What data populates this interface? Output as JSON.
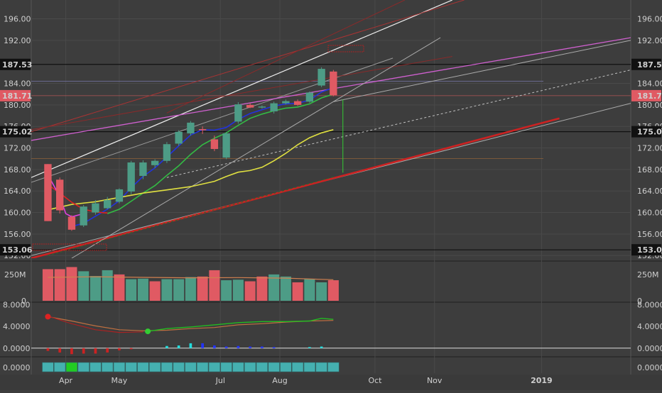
{
  "chart_data": {
    "type": "candlestick",
    "colors": {
      "background": "#3d3d3d",
      "grid": "#4a4a4a",
      "up": "#4d9c86",
      "down": "#e05a63",
      "ma_fast": "#2233dd",
      "ma_mid": "#33bb44",
      "ma_slow": "#e0e040",
      "ma_red": "#dd2222",
      "ma_magenta": "#e040e0",
      "volume_ma": "#d08050",
      "osc_line": "#22bb22",
      "osc_signal": "#c07040",
      "bar_down": "#cc2222",
      "bar_up": "#22dddd",
      "bar_blue": "#2233ff"
    },
    "price_axis": {
      "ticks": [
        "196.00",
        "192.00",
        "184.00",
        "180.00",
        "176.00",
        "172.00",
        "168.00",
        "164.00",
        "160.00",
        "156.00",
        "152.00"
      ],
      "ylim": [
        151.5,
        199.5
      ],
      "highlight_labels": [
        {
          "label": "187.53",
          "value": 187.53,
          "style": "dark"
        },
        {
          "label": "181.71",
          "value": 181.71,
          "style": "red"
        },
        {
          "label": "175.02",
          "value": 175.02,
          "style": "dark"
        },
        {
          "label": "153.06",
          "value": 153.06,
          "style": "dark"
        }
      ]
    },
    "horizontal_lines": [
      187.53,
      175.02,
      153.06
    ],
    "x_axis": {
      "ticks": [
        {
          "label": "Apr",
          "week": 1.5
        },
        {
          "label": "May",
          "week": 6
        },
        {
          "label": "Jul",
          "week": 14.5
        },
        {
          "label": "Aug",
          "week": 19.5
        },
        {
          "label": "Oct",
          "week": 27.5
        },
        {
          "label": "Nov",
          "week": 32.5
        },
        {
          "label": "2019",
          "week": 41.5
        }
      ],
      "week_range": [
        -1.4,
        49
      ]
    },
    "candles": [
      {
        "w": 0,
        "o": 169.0,
        "h": 169.0,
        "l": 158.4,
        "c": 158.4
      },
      {
        "w": 1,
        "o": 166.1,
        "h": 166.5,
        "l": 159.8,
        "c": 160.4
      },
      {
        "w": 2,
        "o": 159.2,
        "h": 159.5,
        "l": 156.6,
        "c": 156.8
      },
      {
        "w": 3,
        "o": 157.6,
        "h": 161.4,
        "l": 157.3,
        "c": 161.1
      },
      {
        "w": 4,
        "o": 160.0,
        "h": 162.3,
        "l": 159.6,
        "c": 161.7
      },
      {
        "w": 5,
        "o": 160.8,
        "h": 162.9,
        "l": 160.6,
        "c": 162.3
      },
      {
        "w": 6,
        "o": 162.0,
        "h": 164.5,
        "l": 161.7,
        "c": 164.3
      },
      {
        "w": 7,
        "o": 163.9,
        "h": 169.6,
        "l": 163.4,
        "c": 169.3
      },
      {
        "w": 8,
        "o": 166.8,
        "h": 169.7,
        "l": 166.2,
        "c": 169.3
      },
      {
        "w": 9,
        "o": 168.8,
        "h": 169.9,
        "l": 168.3,
        "c": 169.6
      },
      {
        "w": 10,
        "o": 169.6,
        "h": 173.1,
        "l": 169.2,
        "c": 172.7
      },
      {
        "w": 11,
        "o": 172.8,
        "h": 175.3,
        "l": 172.4,
        "c": 175.0
      },
      {
        "w": 12,
        "o": 174.7,
        "h": 177.0,
        "l": 174.3,
        "c": 176.7
      },
      {
        "w": 13,
        "o": 175.5,
        "h": 176.0,
        "l": 174.6,
        "c": 175.3
      },
      {
        "w": 14,
        "o": 173.6,
        "h": 174.3,
        "l": 171.4,
        "c": 171.8
      },
      {
        "w": 15,
        "o": 170.2,
        "h": 175.0,
        "l": 169.9,
        "c": 174.7
      },
      {
        "w": 16,
        "o": 176.9,
        "h": 180.5,
        "l": 176.5,
        "c": 180.1
      },
      {
        "w": 17,
        "o": 180.0,
        "h": 180.3,
        "l": 179.4,
        "c": 179.5
      },
      {
        "w": 18,
        "o": 179.6,
        "h": 179.9,
        "l": 179.3,
        "c": 179.7
      },
      {
        "w": 19,
        "o": 178.8,
        "h": 180.6,
        "l": 178.4,
        "c": 180.3
      },
      {
        "w": 20,
        "o": 180.3,
        "h": 181.0,
        "l": 180.1,
        "c": 180.7
      },
      {
        "w": 21,
        "o": 180.7,
        "h": 181.0,
        "l": 179.8,
        "c": 180.0
      },
      {
        "w": 22,
        "o": 180.6,
        "h": 182.5,
        "l": 180.4,
        "c": 182.3
      },
      {
        "w": 23,
        "o": 183.6,
        "h": 187.0,
        "l": 183.3,
        "c": 186.7
      },
      {
        "w": 24,
        "o": 186.2,
        "h": 186.5,
        "l": 181.6,
        "c": 181.8
      }
    ],
    "wick_spike": {
      "w": 24.8,
      "high": 181.0,
      "low": 167.4
    },
    "moving_averages": [
      {
        "color": "ma_fast",
        "points": [
          [
            2,
            157.4
          ],
          [
            3,
            158.0
          ],
          [
            4,
            159.3
          ],
          [
            5,
            160.6
          ],
          [
            6,
            162.2
          ],
          [
            7,
            164.6
          ],
          [
            8,
            166.7
          ],
          [
            9,
            168.3
          ],
          [
            10,
            170.3
          ],
          [
            11,
            172.4
          ],
          [
            12,
            174.4
          ],
          [
            13,
            175.4
          ],
          [
            14,
            175.3
          ],
          [
            15,
            175.8
          ],
          [
            16,
            177.3
          ],
          [
            17,
            178.4
          ],
          [
            18,
            179.1
          ],
          [
            19,
            179.8
          ],
          [
            20,
            180.2
          ],
          [
            21,
            180.3
          ],
          [
            22,
            180.9
          ],
          [
            23,
            182.4
          ],
          [
            24,
            183.2
          ]
        ]
      },
      {
        "color": "ma_mid",
        "points": [
          [
            5,
            159.8
          ],
          [
            6,
            160.6
          ],
          [
            7,
            162.1
          ],
          [
            8,
            163.6
          ],
          [
            9,
            165.0
          ],
          [
            10,
            166.9
          ],
          [
            11,
            168.7
          ],
          [
            12,
            170.8
          ],
          [
            13,
            172.6
          ],
          [
            14,
            173.8
          ],
          [
            15,
            174.8
          ],
          [
            16,
            176.2
          ],
          [
            17,
            177.5
          ],
          [
            18,
            178.3
          ],
          [
            19,
            178.9
          ],
          [
            20,
            179.4
          ],
          [
            21,
            179.6
          ],
          [
            22,
            180.2
          ],
          [
            23,
            181.3
          ],
          [
            24,
            182.0
          ]
        ]
      },
      {
        "color": "ma_slow",
        "points": [
          [
            0,
            160.5
          ],
          [
            2,
            161.5
          ],
          [
            4,
            162.0
          ],
          [
            6,
            162.8
          ],
          [
            8,
            163.6
          ],
          [
            10,
            164.2
          ],
          [
            12,
            164.8
          ],
          [
            14,
            165.8
          ],
          [
            15,
            166.7
          ],
          [
            16,
            167.5
          ],
          [
            17,
            167.8
          ],
          [
            18,
            168.4
          ],
          [
            19,
            169.6
          ],
          [
            20,
            171.0
          ],
          [
            21,
            172.6
          ],
          [
            22,
            173.9
          ],
          [
            23,
            174.8
          ],
          [
            24,
            175.4
          ]
        ]
      },
      {
        "color": "ma_red",
        "points": [
          [
            0,
            165.2
          ],
          [
            1,
            163.6
          ],
          [
            2,
            161.9
          ],
          [
            3,
            160.6
          ],
          [
            4,
            160.1
          ],
          [
            5,
            159.9
          ]
        ]
      },
      {
        "color": "ma_magenta",
        "points": [
          [
            0,
            167.0
          ],
          [
            1,
            163.0
          ],
          [
            1.5,
            159.8
          ],
          [
            2,
            159.2
          ],
          [
            3,
            159.8
          ]
        ]
      }
    ],
    "trend_lines": [
      {
        "color": "#f0f0f0",
        "width": 1.2,
        "dash": "",
        "p1": [
          -1.4,
          166.5
        ],
        "p2": [
          34,
          199.5
        ]
      },
      {
        "color": "#9a9a9a",
        "width": 1,
        "dash": "",
        "p1": [
          -1.4,
          165.6
        ],
        "p2": [
          29,
          188.7
        ]
      },
      {
        "color": "#d060d0",
        "width": 1.3,
        "dash": "",
        "p1": [
          -1.4,
          173.4
        ],
        "p2": [
          49,
          192.5
        ]
      },
      {
        "color": "#aaaaaa",
        "width": 1,
        "dash": "",
        "p1": [
          -1.4,
          152.0
        ],
        "p2": [
          49,
          180.3
        ]
      },
      {
        "color": "#aaaaaa",
        "width": 1,
        "dash": "",
        "p1": [
          24,
          180.6
        ],
        "p2": [
          49,
          192.0
        ]
      },
      {
        "color": "#cc2222",
        "width": 2.6,
        "dash": "",
        "p1": [
          -1.4,
          151.5
        ],
        "p2": [
          43,
          177.5
        ]
      },
      {
        "color": "#aa3333",
        "width": 1,
        "dash": "",
        "p1": [
          -1.4,
          175.0
        ],
        "p2": [
          35,
          199.5
        ]
      },
      {
        "color": "#8a2a2a",
        "width": 1,
        "dash": "",
        "p1": [
          10,
          178.5
        ],
        "p2": [
          30,
          199.5
        ]
      },
      {
        "color": "#8a2a2a",
        "width": 1,
        "dash": "",
        "p1": [
          -1.4,
          175.4
        ],
        "p2": [
          34,
          189.0
        ]
      },
      {
        "color": "#c0c0c0",
        "width": 1,
        "dash": "3,3",
        "p1": [
          10,
          166.5
        ],
        "p2": [
          49,
          186.5
        ]
      },
      {
        "color": "#aaaaaa",
        "width": 1,
        "dash": "",
        "p1": [
          2,
          151.5
        ],
        "p2": [
          33,
          192.5
        ]
      },
      {
        "color": "#2a6a2a",
        "width": 1,
        "dash": "3,3",
        "p1": [
          0,
          152.0
        ],
        "p2": [
          24,
          166.6
        ]
      }
    ],
    "volume": {
      "ticks": [
        "250M",
        "0"
      ],
      "ylim": [
        0,
        350
      ],
      "bars": [
        {
          "w": 0,
          "v": 300,
          "up": false
        },
        {
          "w": 1,
          "v": 300,
          "up": false
        },
        {
          "w": 2,
          "v": 320,
          "up": false
        },
        {
          "w": 3,
          "v": 280,
          "up": true
        },
        {
          "w": 4,
          "v": 235,
          "up": true
        },
        {
          "w": 5,
          "v": 290,
          "up": true
        },
        {
          "w": 6,
          "v": 250,
          "up": false
        },
        {
          "w": 7,
          "v": 205,
          "up": true
        },
        {
          "w": 8,
          "v": 210,
          "up": true
        },
        {
          "w": 9,
          "v": 185,
          "up": false
        },
        {
          "w": 10,
          "v": 205,
          "up": true
        },
        {
          "w": 11,
          "v": 205,
          "up": true
        },
        {
          "w": 12,
          "v": 225,
          "up": true
        },
        {
          "w": 13,
          "v": 230,
          "up": false
        },
        {
          "w": 14,
          "v": 290,
          "up": false
        },
        {
          "w": 15,
          "v": 195,
          "up": true
        },
        {
          "w": 16,
          "v": 200,
          "up": true
        },
        {
          "w": 17,
          "v": 185,
          "up": false
        },
        {
          "w": 18,
          "v": 230,
          "up": false
        },
        {
          "w": 19,
          "v": 250,
          "up": true
        },
        {
          "w": 20,
          "v": 230,
          "up": true
        },
        {
          "w": 21,
          "v": 175,
          "up": false
        },
        {
          "w": 22,
          "v": 205,
          "up": true
        },
        {
          "w": 23,
          "v": 175,
          "up": true
        },
        {
          "w": 24,
          "v": 195,
          "up": false
        }
      ],
      "ma": [
        [
          0,
          222
        ],
        [
          4,
          228
        ],
        [
          8,
          222
        ],
        [
          12,
          218
        ],
        [
          16,
          220
        ],
        [
          20,
          215
        ],
        [
          24,
          200
        ]
      ]
    },
    "oscillator": {
      "ticks": [
        "8.0000",
        "4.0000",
        "0.0000"
      ],
      "ylim": [
        -1.2,
        8.2
      ],
      "line": [
        [
          8.4,
          3.1
        ],
        [
          10,
          3.6
        ],
        [
          12,
          3.9
        ],
        [
          14,
          4.3
        ],
        [
          16,
          4.7
        ],
        [
          18,
          4.9
        ],
        [
          20,
          4.9
        ],
        [
          22,
          5.0
        ],
        [
          23,
          5.5
        ],
        [
          24,
          5.3
        ]
      ],
      "signal": [
        [
          0,
          5.8
        ],
        [
          2,
          5.0
        ],
        [
          4,
          4.1
        ],
        [
          6,
          3.4
        ],
        [
          8,
          3.2
        ],
        [
          10,
          3.3
        ],
        [
          12,
          3.6
        ],
        [
          14,
          3.8
        ],
        [
          16,
          4.3
        ],
        [
          18,
          4.5
        ],
        [
          20,
          4.8
        ],
        [
          22,
          5.0
        ],
        [
          24,
          5.1
        ]
      ],
      "red_curve": [
        [
          0,
          5.9
        ],
        [
          2,
          4.5
        ],
        [
          4,
          3.4
        ],
        [
          6,
          2.9
        ],
        [
          8,
          3.0
        ]
      ],
      "cross_points": [
        {
          "w": 0,
          "v": 5.8,
          "color": "#dd2222"
        },
        {
          "w": 8.4,
          "v": 3.1,
          "color": "#33cc33"
        }
      ],
      "bars": [
        {
          "w": 0,
          "v": -0.5,
          "color": "bar_down"
        },
        {
          "w": 1,
          "v": -0.8,
          "color": "bar_down"
        },
        {
          "w": 2,
          "v": -1.1,
          "color": "bar_down"
        },
        {
          "w": 3,
          "v": -1.0,
          "color": "bar_down"
        },
        {
          "w": 4,
          "v": -1.0,
          "color": "bar_down"
        },
        {
          "w": 5,
          "v": -0.8,
          "color": "bar_down"
        },
        {
          "w": 6,
          "v": -0.4,
          "color": "bar_down"
        },
        {
          "w": 7,
          "v": -0.2,
          "color": "bar_down"
        },
        {
          "w": 10,
          "v": 0.4,
          "color": "bar_up"
        },
        {
          "w": 11,
          "v": 0.5,
          "color": "bar_up"
        },
        {
          "w": 12,
          "v": 0.9,
          "color": "bar_up"
        },
        {
          "w": 13,
          "v": 0.9,
          "color": "bar_blue"
        },
        {
          "w": 14,
          "v": 0.5,
          "color": "bar_blue"
        },
        {
          "w": 15,
          "v": 0.3,
          "color": "bar_blue"
        },
        {
          "w": 16,
          "v": 0.4,
          "color": "bar_blue"
        },
        {
          "w": 17,
          "v": 0.3,
          "color": "bar_blue"
        },
        {
          "w": 18,
          "v": 0.3,
          "color": "bar_blue"
        },
        {
          "w": 19,
          "v": 0.2,
          "color": "bar_blue"
        },
        {
          "w": 22,
          "v": 0.2,
          "color": "bar_up"
        },
        {
          "w": 23,
          "v": 0.3,
          "color": "bar_up"
        }
      ]
    },
    "bottom_panel": {
      "ticks": [
        "0.0000"
      ],
      "cells": [
        {
          "w": 0,
          "color": "#45b0b0"
        },
        {
          "w": 1,
          "color": "#45b0b0"
        },
        {
          "w": 2,
          "color": "#22cc22"
        },
        {
          "w": 3,
          "color": "#45b0b0"
        },
        {
          "w": 4,
          "color": "#45b0b0"
        },
        {
          "w": 5,
          "color": "#45b0b0"
        },
        {
          "w": 6,
          "color": "#45b0b0"
        },
        {
          "w": 7,
          "color": "#45b0b0"
        },
        {
          "w": 8,
          "color": "#45b0b0"
        },
        {
          "w": 9,
          "color": "#45b0b0"
        },
        {
          "w": 10,
          "color": "#45b0b0"
        },
        {
          "w": 11,
          "color": "#45b0b0"
        },
        {
          "w": 12,
          "color": "#45b0b0"
        },
        {
          "w": 13,
          "color": "#45b0b0"
        },
        {
          "w": 14,
          "color": "#45b0b0"
        },
        {
          "w": 15,
          "color": "#45b0b0"
        },
        {
          "w": 16,
          "color": "#45b0b0"
        },
        {
          "w": 17,
          "color": "#45b0b0"
        },
        {
          "w": 18,
          "color": "#45b0b0"
        },
        {
          "w": 19,
          "color": "#45b0b0"
        },
        {
          "w": 20,
          "color": "#45b0b0"
        },
        {
          "w": 21,
          "color": "#45b0b0"
        },
        {
          "w": 22,
          "color": "#45b0b0"
        },
        {
          "w": 23,
          "color": "#45b0b0"
        },
        {
          "w": 24,
          "color": "#45b0b0"
        }
      ]
    }
  }
}
